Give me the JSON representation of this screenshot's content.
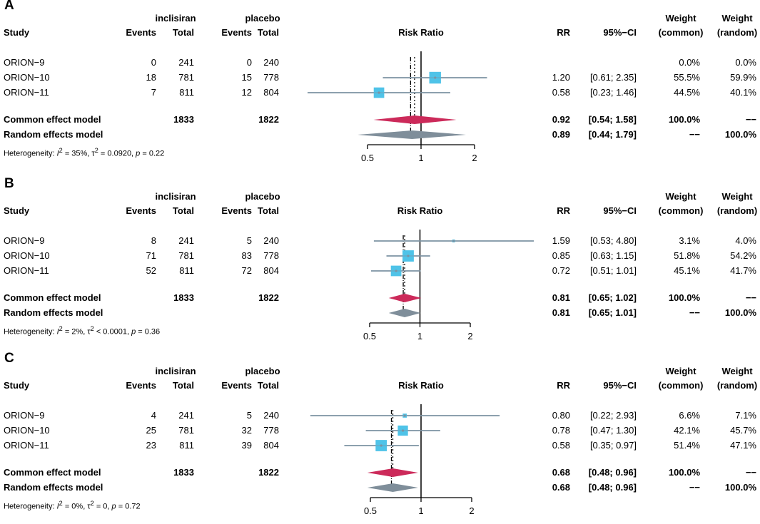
{
  "header": {
    "study": "Study",
    "group1": "inclisiran",
    "group2": "placebo",
    "events": "Events",
    "total": "Total",
    "risk_ratio": "Risk Ratio",
    "rr": "RR",
    "ci": "95%−CI",
    "weight": "Weight",
    "common": "(common)",
    "random": "(random)"
  },
  "colors": {
    "square": "#4fc3e8",
    "ci_line": "#7b93a3",
    "common": "#cc2a5a",
    "random": "#7f8e9a"
  },
  "chart_data": [
    {
      "type": "forest",
      "label": "A",
      "xlabel": "Risk Ratio",
      "scale": "log",
      "xlim": [
        0.5,
        2
      ],
      "ticks": [
        "0.5",
        "1",
        "2"
      ],
      "tick_values": [
        0.5,
        1,
        2
      ],
      "studies": [
        {
          "name": "ORION−9",
          "e1": "0",
          "n1": "241",
          "e2": "0",
          "n2": "240",
          "rr": null,
          "lo": null,
          "hi": null,
          "rr_text": "",
          "ci_text": "",
          "wc": "0.0%",
          "wr": "0.0%",
          "w": 0
        },
        {
          "name": "ORION−10",
          "e1": "18",
          "n1": "781",
          "e2": "15",
          "n2": "778",
          "rr": 1.2,
          "lo": 0.61,
          "hi": 2.35,
          "rr_text": "1.20",
          "ci_text": "[0.61; 2.35]",
          "wc": "55.5%",
          "wr": "59.9%",
          "w": 0.555
        },
        {
          "name": "ORION−11",
          "e1": "7",
          "n1": "811",
          "e2": "12",
          "n2": "804",
          "rr": 0.58,
          "lo": 0.23,
          "hi": 1.46,
          "rr_text": "0.58",
          "ci_text": "[0.23; 1.46]",
          "wc": "44.5%",
          "wr": "40.1%",
          "w": 0.445
        }
      ],
      "common": {
        "label": "Common effect model",
        "n1": "1833",
        "n2": "1822",
        "rr": 0.92,
        "lo": 0.54,
        "hi": 1.58,
        "rr_text": "0.92",
        "ci_text": "[0.54; 1.58]",
        "wc": "100.0%",
        "wr": "−−"
      },
      "random": {
        "label": "Random effects model",
        "rr": 0.89,
        "lo": 0.44,
        "hi": 1.79,
        "rr_text": "0.89",
        "ci_text": "[0.44; 1.79]",
        "wc": "−−",
        "wr": "100.0%"
      },
      "het": {
        "prefix": "Heterogeneity: ",
        "i2_sym": "I",
        "i2_sup": "2",
        "i2_val": " = 35%, ",
        "tau_sym": "τ",
        "tau_sup": "2",
        "tau_val": " = 0.0920, ",
        "p_sym": "p",
        "p_val": " = 0.22"
      }
    },
    {
      "type": "forest",
      "label": "B",
      "xlabel": "Risk Ratio",
      "scale": "log",
      "xlim": [
        0.5,
        2
      ],
      "ticks": [
        "0.5",
        "1",
        "2"
      ],
      "tick_values": [
        0.5,
        1,
        2
      ],
      "studies": [
        {
          "name": "ORION−9",
          "e1": "8",
          "n1": "241",
          "e2": "5",
          "n2": "240",
          "rr": 1.59,
          "lo": 0.53,
          "hi": 4.8,
          "rr_text": "1.59",
          "ci_text": "[0.53; 4.80]",
          "wc": "3.1%",
          "wr": "4.0%",
          "w": 0.031
        },
        {
          "name": "ORION−10",
          "e1": "71",
          "n1": "781",
          "e2": "83",
          "n2": "778",
          "rr": 0.85,
          "lo": 0.63,
          "hi": 1.15,
          "rr_text": "0.85",
          "ci_text": "[0.63; 1.15]",
          "wc": "51.8%",
          "wr": "54.2%",
          "w": 0.518
        },
        {
          "name": "ORION−11",
          "e1": "52",
          "n1": "811",
          "e2": "72",
          "n2": "804",
          "rr": 0.72,
          "lo": 0.51,
          "hi": 1.01,
          "rr_text": "0.72",
          "ci_text": "[0.51; 1.01]",
          "wc": "45.1%",
          "wr": "41.7%",
          "w": 0.451
        }
      ],
      "common": {
        "label": "Common effect model",
        "n1": "1833",
        "n2": "1822",
        "rr": 0.81,
        "lo": 0.65,
        "hi": 1.02,
        "rr_text": "0.81",
        "ci_text": "[0.65; 1.02]",
        "wc": "100.0%",
        "wr": "−−"
      },
      "random": {
        "label": "Random effects model",
        "rr": 0.81,
        "lo": 0.65,
        "hi": 1.01,
        "rr_text": "0.81",
        "ci_text": "[0.65; 1.01]",
        "wc": "−−",
        "wr": "100.0%"
      },
      "het": {
        "prefix": "Heterogeneity: ",
        "i2_sym": "I",
        "i2_sup": "2",
        "i2_val": " = 2%, ",
        "tau_sym": "τ",
        "tau_sup": "2",
        "tau_val": " < 0.0001, ",
        "p_sym": "p",
        "p_val": " = 0.36"
      }
    },
    {
      "type": "forest",
      "label": "C",
      "xlabel": "Risk Ratio",
      "scale": "log",
      "xlim": [
        0.5,
        2
      ],
      "ticks": [
        "0.5",
        "1",
        "2"
      ],
      "tick_values": [
        0.5,
        1,
        2
      ],
      "studies": [
        {
          "name": "ORION−9",
          "e1": "4",
          "n1": "241",
          "e2": "5",
          "n2": "240",
          "rr": 0.8,
          "lo": 0.22,
          "hi": 2.93,
          "rr_text": "0.80",
          "ci_text": "[0.22; 2.93]",
          "wc": "6.6%",
          "wr": "7.1%",
          "w": 0.066
        },
        {
          "name": "ORION−10",
          "e1": "25",
          "n1": "781",
          "e2": "32",
          "n2": "778",
          "rr": 0.78,
          "lo": 0.47,
          "hi": 1.3,
          "rr_text": "0.78",
          "ci_text": "[0.47; 1.30]",
          "wc": "42.1%",
          "wr": "45.7%",
          "w": 0.421
        },
        {
          "name": "ORION−11",
          "e1": "23",
          "n1": "811",
          "e2": "39",
          "n2": "804",
          "rr": 0.58,
          "lo": 0.35,
          "hi": 0.97,
          "rr_text": "0.58",
          "ci_text": "[0.35; 0.97]",
          "wc": "51.4%",
          "wr": "47.1%",
          "w": 0.514
        }
      ],
      "common": {
        "label": "Common effect model",
        "n1": "1833",
        "n2": "1822",
        "rr": 0.68,
        "lo": 0.48,
        "hi": 0.96,
        "rr_text": "0.68",
        "ci_text": "[0.48; 0.96]",
        "wc": "100.0%",
        "wr": "−−"
      },
      "random": {
        "label": "Random effects model",
        "rr": 0.68,
        "lo": 0.48,
        "hi": 0.96,
        "rr_text": "0.68",
        "ci_text": "[0.48; 0.96]",
        "wc": "−−",
        "wr": "100.0%"
      },
      "het": {
        "prefix": "Heterogeneity: ",
        "i2_sym": "I",
        "i2_sup": "2",
        "i2_val": " = 0%, ",
        "tau_sym": "τ",
        "tau_sup": "2",
        "tau_val": " = 0, ",
        "p_sym": "p",
        "p_val": " = 0.72"
      }
    }
  ]
}
